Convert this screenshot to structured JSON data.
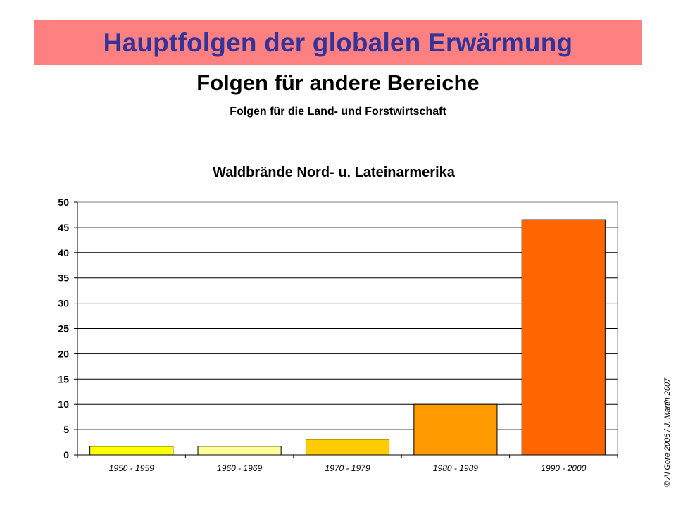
{
  "slide": {
    "title": "Hauptfolgen der globalen Erwärmung",
    "subtitle": "Folgen für andere Bereiche",
    "section": "Folgen für die Land- und Forstwirtschaft",
    "copyright": "© Al Gore 2006 / J. Martin 2007"
  },
  "colors": {
    "banner_bg": "#ff8080",
    "banner_text": "#33339a"
  },
  "chart_data": {
    "type": "bar",
    "title": "Waldbrände Nord- u. Lateinarmerika",
    "categories": [
      "1950 - 1959",
      "1960 - 1969",
      "1970 - 1979",
      "1980 - 1989",
      "1990 - 2000"
    ],
    "values": [
      1.7,
      1.7,
      3.1,
      10,
      46.5
    ],
    "bar_colors": [
      "#ffff00",
      "#ffff99",
      "#ffcc00",
      "#ff9900",
      "#ff6600"
    ],
    "xlabel": "",
    "ylabel": "",
    "ylim": [
      0,
      50
    ],
    "yticks": [
      0,
      5,
      10,
      15,
      20,
      25,
      30,
      35,
      40,
      45,
      50
    ],
    "grid": true,
    "legend": "none"
  }
}
